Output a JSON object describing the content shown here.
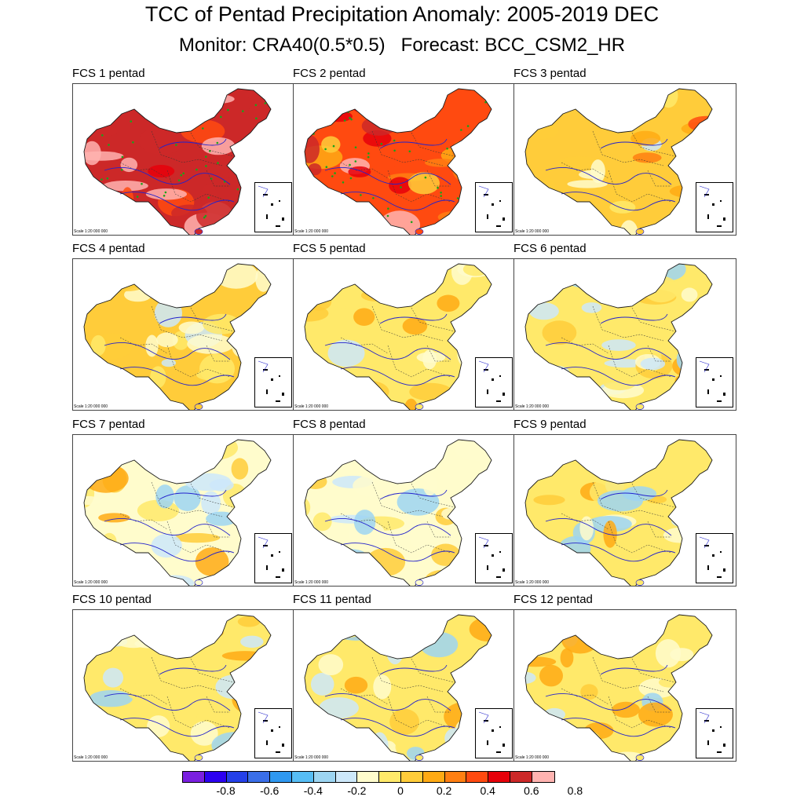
{
  "title": "TCC of Pentad Precipitation Anomaly: 2005-2019 DEC",
  "subtitle": "Monitor: CRA40(0.5*0.5)   Forecast: BCC_CSM2_HR",
  "scale_text": "Scale 1:20 000 000",
  "panels": [
    {
      "label": "FCS 1 pentad",
      "tcc_level": 0.65,
      "signif": true
    },
    {
      "label": "FCS 2 pentad",
      "tcc_level": 0.45,
      "signif": true
    },
    {
      "label": "FCS 3 pentad",
      "tcc_level": 0.15,
      "signif": false
    },
    {
      "label": "FCS 4 pentad",
      "tcc_level": 0.1,
      "signif": false
    },
    {
      "label": "FCS 5 pentad",
      "tcc_level": 0.05,
      "signif": false
    },
    {
      "label": "FCS 6 pentad",
      "tcc_level": 0.0,
      "signif": false
    },
    {
      "label": "FCS 7 pentad",
      "tcc_level": -0.05,
      "signif": false
    },
    {
      "label": "FCS 8 pentad",
      "tcc_level": -0.05,
      "signif": false
    },
    {
      "label": "FCS 9 pentad",
      "tcc_level": 0.0,
      "signif": false
    },
    {
      "label": "FCS 10 pentad",
      "tcc_level": 0.0,
      "signif": false
    },
    {
      "label": "FCS 11 pentad",
      "tcc_level": 0.0,
      "signif": false
    },
    {
      "label": "FCS 12 pentad",
      "tcc_level": 0.0,
      "signif": false
    }
  ],
  "colorbar": {
    "colors": [
      "#7a1fe0",
      "#2c00f0",
      "#2440e8",
      "#3a6ee8",
      "#2f98f0",
      "#57bdf4",
      "#9dd5f2",
      "#cde8fa",
      "#fffccc",
      "#ffe96a",
      "#ffcc3a",
      "#ffaa14",
      "#ff7f12",
      "#ff4a10",
      "#e6000a",
      "#cc2828",
      "#ffb3b0"
    ],
    "ticks": [
      "-0.8",
      "-0.6",
      "-0.4",
      "-0.2",
      "0",
      "0.2",
      "0.4",
      "0.6",
      "0.8"
    ]
  }
}
